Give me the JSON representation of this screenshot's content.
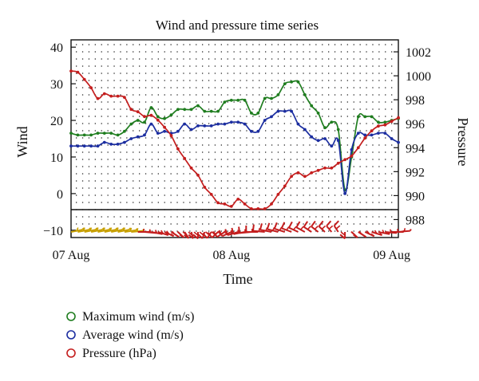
{
  "chart_data": {
    "type": "line",
    "title": "Wind and pressure time series",
    "xlabel": "Time",
    "ylabel_left": "Wind",
    "ylabel_right": "Pressure",
    "x_ticks": [
      "07 Aug",
      "08 Aug",
      "09 Aug"
    ],
    "x_range_hours": [
      0,
      49
    ],
    "y_left_ticks": [
      -10,
      0,
      10,
      20,
      30,
      40
    ],
    "ylim_left": [
      -12,
      42
    ],
    "y_right_ticks": [
      988,
      990,
      992,
      994,
      996,
      998,
      1000,
      1002
    ],
    "ylim_right": [
      986.5,
      1003
    ],
    "grid": "dotted",
    "legend_position": "bottom-left",
    "series": [
      {
        "name": "Maximum wind (m/s)",
        "axis": "left",
        "color": "#1f7d1f",
        "hours": [
          0,
          1,
          2,
          3,
          4,
          5,
          6,
          7,
          8,
          9,
          10,
          11,
          12,
          13,
          14,
          15,
          16,
          17,
          18,
          19,
          20,
          21,
          22,
          23,
          24,
          25,
          26,
          27,
          28,
          29,
          30,
          31,
          32,
          33,
          34,
          35,
          36,
          37,
          38,
          39,
          40,
          41,
          42,
          43,
          44,
          45,
          46,
          47,
          48,
          49
        ],
        "values": [
          16.5,
          16,
          16,
          16,
          16.5,
          16.5,
          16.5,
          16,
          17,
          19,
          20,
          19.5,
          23.5,
          21,
          20.5,
          21.5,
          23,
          23,
          23,
          24,
          22.5,
          22.5,
          22.5,
          25,
          25.5,
          25.5,
          25.5,
          22,
          22,
          26,
          26,
          27,
          30,
          30.5,
          30.5,
          27,
          24,
          22,
          18,
          19.5,
          17.5,
          1,
          10,
          21,
          21,
          21,
          19.5,
          19.5,
          20,
          20.5
        ]
      },
      {
        "name": "Average wind (m/s)",
        "axis": "left",
        "color": "#1c2ea0",
        "hours": [
          0,
          1,
          2,
          3,
          4,
          5,
          6,
          7,
          8,
          9,
          10,
          11,
          12,
          13,
          14,
          15,
          16,
          17,
          18,
          19,
          20,
          21,
          22,
          23,
          24,
          25,
          26,
          27,
          28,
          29,
          30,
          31,
          32,
          33,
          34,
          35,
          36,
          37,
          38,
          39,
          40,
          41,
          42,
          43,
          44,
          45,
          46,
          47,
          48,
          49
        ],
        "values": [
          13,
          13,
          13,
          13,
          13,
          14,
          13.5,
          13.5,
          14,
          15,
          15.5,
          16,
          19,
          16.5,
          17,
          16.5,
          17,
          19,
          17.5,
          18.5,
          18.5,
          18.5,
          19,
          19,
          19.5,
          19.5,
          19,
          17,
          17,
          20,
          21,
          22.5,
          22.5,
          22.5,
          19,
          17.5,
          15.5,
          14.5,
          15,
          13,
          14.5,
          0,
          12,
          16.5,
          16,
          16,
          16.5,
          16.5,
          15,
          14
        ]
      },
      {
        "name": "Pressure (hPa)",
        "axis": "right",
        "color": "#c41e1e",
        "hours": [
          0,
          1,
          2,
          3,
          4,
          5,
          6,
          7,
          8,
          9,
          10,
          11,
          12,
          13,
          14,
          15,
          16,
          17,
          18,
          19,
          20,
          21,
          22,
          23,
          24,
          25,
          26,
          27,
          28,
          29,
          30,
          31,
          32,
          33,
          34,
          35,
          36,
          37,
          38,
          39,
          40,
          41,
          42,
          43,
          44,
          45,
          46,
          47,
          48,
          49
        ],
        "values": [
          1000.4,
          1000.3,
          999.7,
          999,
          998.1,
          998.5,
          998.3,
          998.3,
          998.2,
          997.2,
          997,
          996.6,
          996.7,
          996.3,
          995.7,
          995,
          993.9,
          993.1,
          992.3,
          991.7,
          990.7,
          990.1,
          989.4,
          989.3,
          989.1,
          989.7,
          989.3,
          988.9,
          988.9,
          988.9,
          989.3,
          990.1,
          990.8,
          991.6,
          991.9,
          991.6,
          991.9,
          992.1,
          992.3,
          992.3,
          992.7,
          993,
          993.3,
          994,
          994.8,
          995.4,
          995.8,
          995.9,
          996.2,
          996.5
        ]
      }
    ],
    "wind_barbs": {
      "hours": [
        0,
        1,
        2,
        3,
        4,
        5,
        6,
        7,
        8,
        9,
        10,
        11,
        12,
        13,
        14,
        15,
        16,
        17,
        18,
        19,
        20,
        21,
        22,
        23,
        24,
        25,
        26,
        27,
        28,
        29,
        30,
        31,
        32,
        33,
        34,
        35,
        36,
        37,
        38,
        39,
        40,
        41,
        42,
        43,
        44,
        45,
        46,
        47,
        48,
        49
      ],
      "direction_deg": [
        70,
        70,
        70,
        70,
        70,
        70,
        70,
        70,
        75,
        80,
        90,
        100,
        110,
        120,
        130,
        140,
        150,
        160,
        170,
        180,
        190,
        200,
        210,
        220,
        230,
        240,
        250,
        260,
        270,
        280,
        290,
        295,
        300,
        305,
        310,
        315,
        320,
        325,
        330,
        335,
        340,
        180,
        150,
        140,
        130,
        120,
        110,
        100,
        90,
        80
      ],
      "colors": [
        "#c8a000",
        "#c8a000",
        "#c8a000",
        "#c8a000",
        "#c8a000",
        "#c8a000",
        "#c8a000",
        "#c8a000",
        "#c8a000",
        "#c8a000",
        "#c41e1e"
      ]
    },
    "legend": [
      {
        "label": "Maximum wind (m/s)",
        "color": "#1f7d1f"
      },
      {
        "label": "Average wind (m/s)",
        "color": "#1c2ea0"
      },
      {
        "label": "Pressure (hPa)",
        "color": "#c41e1e"
      }
    ]
  }
}
